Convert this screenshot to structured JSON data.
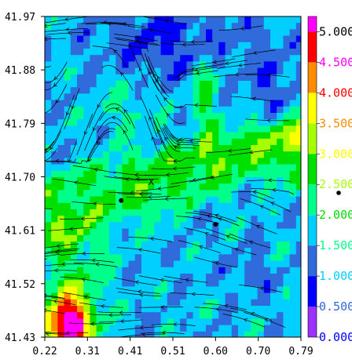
{
  "chart_data": {
    "type": "heatmap",
    "title": "",
    "xlabel": "",
    "ylabel": "",
    "xlim": [
      0.22,
      0.79
    ],
    "ylim": [
      41.43,
      41.97
    ],
    "x_ticks": [
      "0.22",
      "0.31",
      "0.41",
      "0.51",
      "0.60",
      "0.70",
      "0.79"
    ],
    "y_ticks": [
      "41.43",
      "41.52",
      "41.61",
      "41.70",
      "41.79",
      "41.88",
      "41.97"
    ],
    "colorbar": {
      "range": [
        0.0,
        5.25
      ],
      "ticks": [
        "0.000",
        "0.500",
        "1.000",
        "1.500",
        "2.000",
        "2.500",
        "3.000",
        "3.500",
        "4.000",
        "4.500",
        "5.000"
      ],
      "colors": [
        "#9b30ff",
        "#0000ff",
        "#2f6bdb",
        "#00cfff",
        "#00ff8a",
        "#00e000",
        "#a6ff00",
        "#ffff00",
        "#ff8c00",
        "#ff0000",
        "#ff00ff"
      ]
    },
    "overlay": "streamlines",
    "markers": [
      {
        "x": 0.39,
        "y": 41.66
      },
      {
        "x": 0.6,
        "y": 41.62
      }
    ],
    "annotation": "x"
  }
}
